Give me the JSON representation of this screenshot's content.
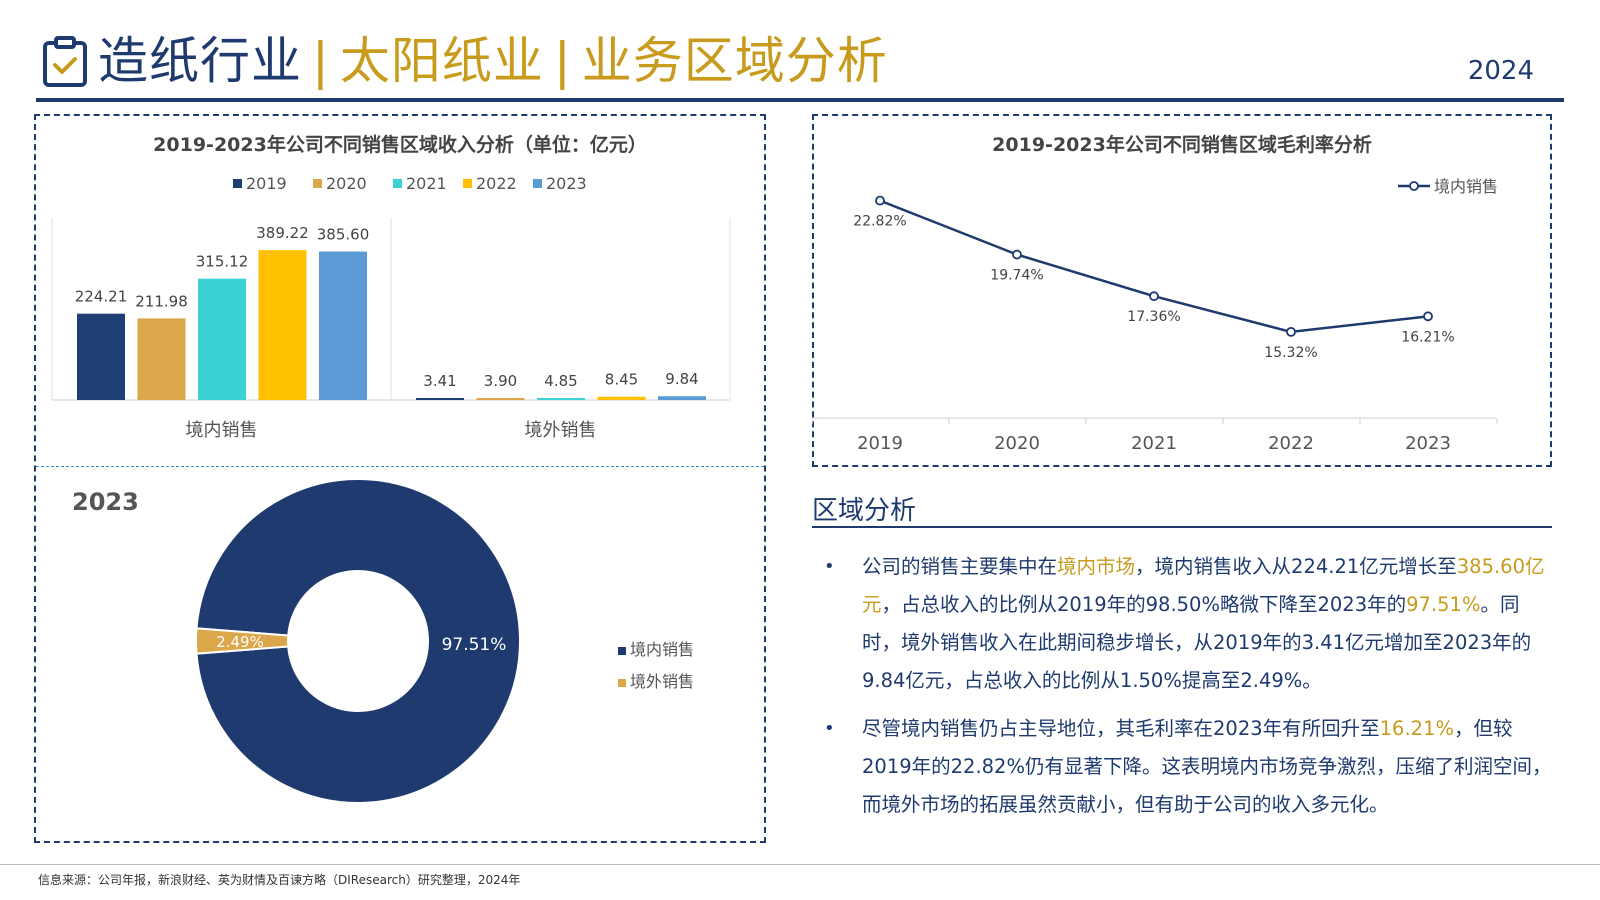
{
  "header": {
    "title_part1": "造纸行业",
    "separator": "|",
    "title_part2": "太阳纸业",
    "title_part3": "业务区域分析",
    "year": "2024",
    "icon": "clipboard-check-icon"
  },
  "colors": {
    "navy": "#1e3a6e",
    "gold": "#c89b1c",
    "s2019": "#1e3f73",
    "s2020": "#dca74b",
    "s2021": "#3bd2d4",
    "s2022": "#ffc000",
    "s2023": "#5b9bd5",
    "overseas": "#dca74b"
  },
  "chart_data": [
    {
      "type": "bar",
      "title": "2019-2023年公司不同销售区域收入分析（单位：亿元）",
      "categories": [
        "境内销售",
        "境外销售"
      ],
      "series": [
        {
          "name": "2019",
          "values": [
            224.21,
            3.41
          ]
        },
        {
          "name": "2020",
          "values": [
            211.98,
            3.9
          ]
        },
        {
          "name": "2021",
          "values": [
            315.12,
            4.85
          ]
        },
        {
          "name": "2022",
          "values": [
            389.22,
            8.45
          ]
        },
        {
          "name": "2023",
          "values": [
            385.6,
            9.84
          ]
        }
      ],
      "data_labels": [
        [
          "224.21",
          "211.98",
          "315.12",
          "389.22",
          "385.60"
        ],
        [
          "3.41",
          "3.90",
          "4.85",
          "8.45",
          "9.84"
        ]
      ],
      "ylim": [
        0,
        400
      ],
      "legend": "top"
    },
    {
      "type": "line",
      "title": "2019-2023年公司不同销售区域毛利率分析",
      "x": [
        "2019",
        "2020",
        "2021",
        "2022",
        "2023"
      ],
      "series": [
        {
          "name": "境内销售",
          "values": [
            22.82,
            19.74,
            17.36,
            15.32,
            16.21
          ],
          "labels": [
            "22.82%",
            "19.74%",
            "17.36%",
            "15.32%",
            "16.21%"
          ]
        }
      ],
      "ylim": [
        12,
        24
      ],
      "legend": "top-right"
    },
    {
      "type": "pie",
      "title": "2023",
      "slices": [
        {
          "name": "境内销售",
          "value": 97.51,
          "label": "97.51%"
        },
        {
          "name": "境外销售",
          "value": 2.49,
          "label": "2.49%"
        }
      ],
      "legend": "right"
    }
  ],
  "analysis": {
    "title": "区域分析",
    "bullet_char": "•",
    "b1": {
      "p1": "公司的销售主要集中在",
      "h1": "境内市场",
      "p2": "，境内销售收入从224.21亿元增长至",
      "h2": "385.60亿元",
      "p3": "，占总收入的比例从2019年的98.50%略微下降至2023年的",
      "h3": "97.51%",
      "p4": "。同时，境外销售收入在此期间稳步增长，从2019年的3.41亿元增加至2023年的9.84亿元，占总收入的比例从1.50%提高至2.49%。"
    },
    "b2": {
      "p1": "尽管境内销售仍占主导地位，其毛利率在2023年有所回升至",
      "h1": "16.21%",
      "p2": "，但较2019年的22.82%仍有显著下降。这表明境内市场竞争激烈，压缩了利润空间，而境外市场的拓展虽然贡献小，但有助于公司的收入多元化。"
    }
  },
  "footer": {
    "source": "信息来源：公司年报，新浪财经、英为财情及百谏方略（DIResearch）研究整理，2024年"
  }
}
